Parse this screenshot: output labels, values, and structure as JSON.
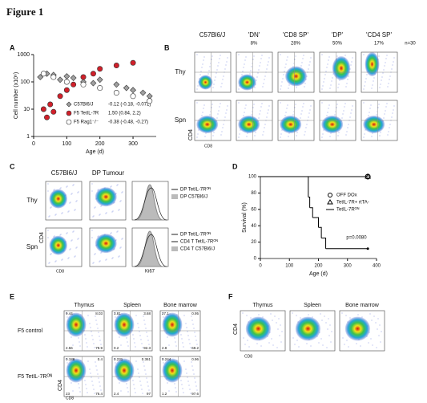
{
  "figure_title": "Figure 1",
  "panel_a": {
    "label": "A",
    "y_label": "Cell number (x10⁶)",
    "x_label": "Age (d)",
    "ylog": true,
    "ylim": [
      1,
      1000
    ],
    "yticks": [
      1,
      10,
      100,
      1000
    ],
    "xlim": [
      0,
      370
    ],
    "xticks": [
      0,
      100,
      200,
      300
    ],
    "series": [
      {
        "name": "C57Bl6/J",
        "stat": "-0.12 (-0.18, -0.071)",
        "color": "#a0a0a0",
        "marker": "diamond",
        "x": [
          20,
          40,
          60,
          80,
          100,
          120,
          150,
          180,
          200,
          250,
          280,
          300,
          330,
          350
        ],
        "values": [
          150,
          200,
          180,
          120,
          160,
          140,
          100,
          90,
          120,
          80,
          60,
          50,
          40,
          30
        ]
      },
      {
        "name": "F5 TetIL-7R",
        "stat": "1.50 (0.84, 2.2)",
        "color": "#d0202a",
        "marker": "circle",
        "x": [
          30,
          40,
          50,
          60,
          80,
          100,
          120,
          150,
          180,
          200,
          250,
          300
        ],
        "values": [
          10,
          5,
          15,
          8,
          30,
          50,
          80,
          150,
          200,
          300,
          400,
          500
        ]
      },
      {
        "name": "F5 Rag1⁻/⁻",
        "stat": "-0.38 (-0.48, -0.27)",
        "color": "#ffffff",
        "marker": "circle",
        "x": [
          30,
          60,
          100,
          150,
          200,
          250,
          300,
          350
        ],
        "values": [
          200,
          150,
          100,
          80,
          60,
          40,
          30,
          20
        ]
      }
    ]
  },
  "panel_b": {
    "label": "B",
    "columns": [
      {
        "title": "C57Bl6/J"
      },
      {
        "title": "'DN'",
        "pct": "8%"
      },
      {
        "title": "'CD8 SP'",
        "pct": "28%"
      },
      {
        "title": "'DP'",
        "pct": "50%"
      },
      {
        "title": "'CD4 SP'",
        "pct": "17%"
      }
    ],
    "n": "n=30",
    "rows": [
      "Thy",
      "Spn"
    ],
    "y_axis": "CD4",
    "x_axis": "CD8"
  },
  "panel_c": {
    "label": "C",
    "columns": [
      "C57Bl6/J",
      "DP Tumour"
    ],
    "rows": [
      "Thy",
      "Spn"
    ],
    "legend_top": [
      "DP TetIL-7Rᴼᴺ",
      "DP C57Bl6/J"
    ],
    "legend_bottom": [
      "DP TetIL-7Rᴼᴺ",
      "CD4 T TetIL-7Rᴼᴺ",
      "CD4 T C57Bl6/J"
    ],
    "y_axis": "CD4",
    "x_axis": "CD8",
    "hist_axis": "Ki67"
  },
  "panel_d": {
    "label": "D",
    "y_label": "Survival (%)",
    "x_label": "Age (d)",
    "ylim": [
      0,
      100
    ],
    "yticks": [
      0,
      20,
      40,
      60,
      80,
      100
    ],
    "xlim": [
      0,
      400
    ],
    "xticks": [
      0,
      100,
      200,
      300,
      400
    ],
    "annotation": "p=0.0080",
    "series": [
      {
        "name": "OFF DOx",
        "color": "#000000",
        "x": [
          0,
          370
        ],
        "values": [
          100,
          100
        ]
      },
      {
        "name": "TetIL-7R+ rtTA-",
        "color": "#000000",
        "x": [
          0,
          370
        ],
        "values": [
          100,
          100
        ]
      },
      {
        "name": "TetIL-7Rᴼᴺ",
        "color": "#000000",
        "x": [
          0,
          165,
          170,
          180,
          200,
          210,
          225,
          370
        ],
        "values": [
          100,
          75,
          62,
          50,
          38,
          25,
          12,
          12
        ]
      }
    ]
  },
  "panel_e": {
    "label": "E",
    "columns": [
      "Thymus",
      "Spleen",
      "Bone marrow"
    ],
    "rows": [
      {
        "name": "F5 control",
        "quadrants": [
          [
            "9.44",
            "8.03",
            "2.56",
            "79.9"
          ],
          [
            "3.81",
            "3.68",
            "0.2",
            "92.3"
          ],
          [
            "27.1",
            "0.95",
            "2.8",
            "69.2"
          ]
        ]
      },
      {
        "name": "F5 TetIL-7Rᴼᴺ",
        "quadrants": [
          [
            "0.188",
            "0.4",
            "23",
            "76.4"
          ],
          [
            "0.231",
            "0.361",
            "2.4",
            "97"
          ],
          [
            "0.244",
            "0.96",
            "1.2",
            "97.6"
          ]
        ]
      }
    ],
    "y_axis": "CD4",
    "x_axis": "CD8"
  },
  "panel_f": {
    "label": "F",
    "columns": [
      "Thymus",
      "Spleen",
      "Bone marrow"
    ],
    "y_axis": "CD4",
    "x_axis": "CD8"
  }
}
